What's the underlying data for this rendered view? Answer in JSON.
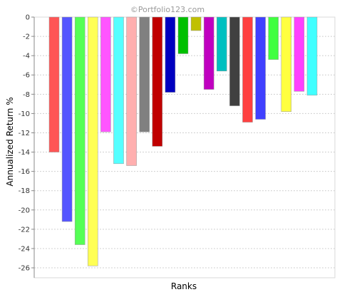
{
  "watermark": "©Portfolio123.com",
  "chart_data": {
    "type": "bar",
    "xlabel": "Ranks",
    "ylabel": "Annualized Return %",
    "ylim": [
      -27,
      0
    ],
    "yticks": [
      0,
      -2,
      -4,
      -6,
      -8,
      -10,
      -12,
      -14,
      -16,
      -18,
      -20,
      -22,
      -24,
      -26
    ],
    "ytick_labels": [
      "0",
      "-2",
      "-4",
      "-6",
      "-8",
      "-10",
      "-12",
      "-14",
      "-16",
      "-18",
      "-20",
      "-22",
      "-24",
      "-26"
    ],
    "grid": true,
    "legend": "none",
    "values": [
      -14.0,
      -21.2,
      -23.6,
      -25.8,
      -11.9,
      -15.2,
      -15.4,
      -11.9,
      -13.4,
      -7.8,
      -3.8,
      -1.4,
      -7.5,
      -5.6,
      -9.2,
      -10.9,
      -10.6,
      -4.4,
      -9.8,
      -7.7,
      -8.1
    ],
    "colors": [
      "#ff5555",
      "#5555ff",
      "#55ff55",
      "#ffff55",
      "#ff55ff",
      "#55ffff",
      "#ffafaf",
      "#808080",
      "#c00000",
      "#0000c0",
      "#00c000",
      "#c0c000",
      "#c000c0",
      "#00c0c0",
      "#404040",
      "#ff4040",
      "#4040ff",
      "#40ff40",
      "#ffff40",
      "#ff40ff",
      "#40ffff"
    ]
  }
}
